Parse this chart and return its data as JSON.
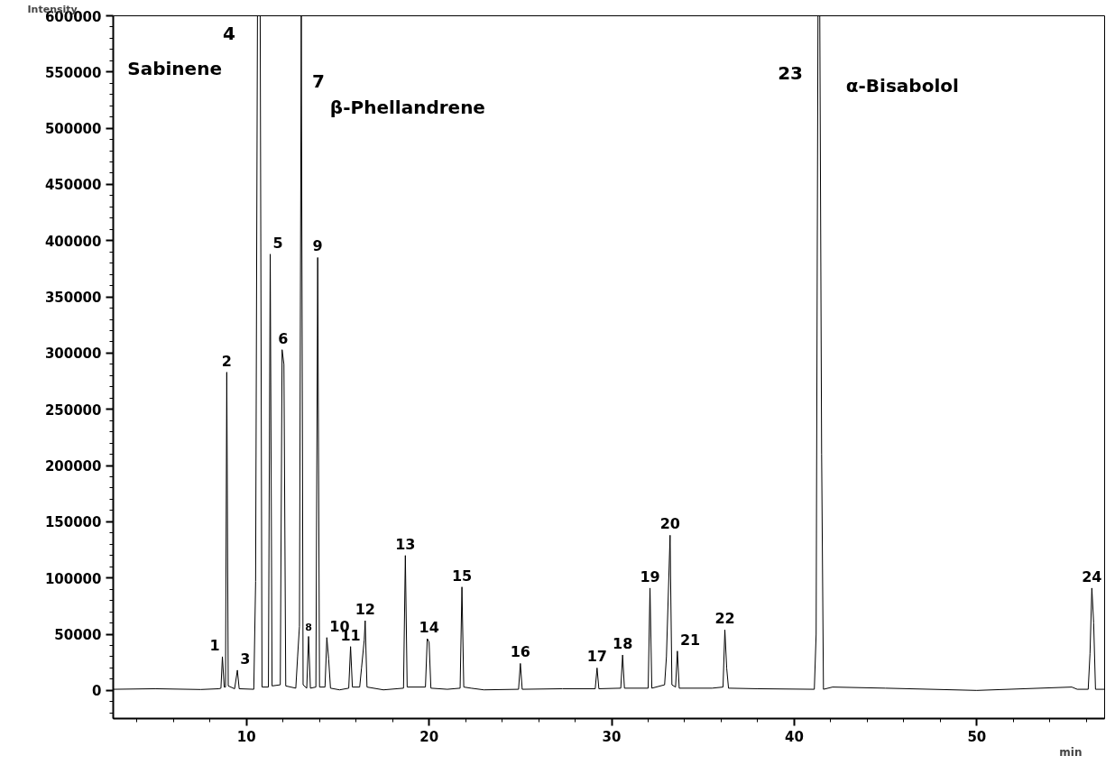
{
  "chart_data": {
    "type": "line",
    "xlabel": "min",
    "ylabel": "Intensity",
    "series": [
      {
        "color": "#000000",
        "x": [
          2.7,
          5,
          7.5,
          8.5,
          8.6,
          8.68,
          8.78,
          8.85,
          8.92,
          9.0,
          9.35,
          9.5,
          9.6,
          10.4,
          10.5,
          10.6,
          10.75,
          10.85,
          11.2,
          11.3,
          11.4,
          11.85,
          11.95,
          12.05,
          12.15,
          12.7,
          12.8,
          12.9,
          13.0,
          13.1,
          13.3,
          13.4,
          13.5,
          13.8,
          13.9,
          14.0,
          14.3,
          14.4,
          14.5,
          14.6,
          15.1,
          15.6,
          15.7,
          15.8,
          16.2,
          16.3,
          16.45,
          16.5,
          16.6,
          17.5,
          18.6,
          18.7,
          18.8,
          19.8,
          19.9,
          20.0,
          20.1,
          21.0,
          21.7,
          21.8,
          21.9,
          22.3,
          23,
          24.9,
          25.0,
          25.1,
          27.3,
          29.1,
          29.2,
          29.3,
          30.5,
          30.6,
          30.7,
          32.0,
          32.1,
          32.2,
          32.9,
          33.0,
          33.2,
          33.3,
          33.5,
          33.6,
          33.7,
          35.5,
          36.1,
          36.2,
          36.3,
          36.4,
          38,
          41.1,
          41.2,
          41.3,
          41.4,
          41.5,
          41.6,
          42.1,
          45,
          50,
          55.2,
          55.5,
          56.1,
          56.2,
          56.3,
          56.4,
          56.5,
          57
        ],
        "values": [
          1000,
          1500,
          800,
          1500,
          2000,
          30000,
          3000,
          3000,
          283000,
          4000,
          1500,
          18000,
          1500,
          1000,
          97000,
          600000,
          600000,
          3000,
          3000,
          388000,
          4000,
          5000,
          303000,
          290000,
          4000,
          2000,
          30000,
          57000,
          600000,
          5000,
          2000,
          48000,
          2000,
          3000,
          385000,
          3000,
          3000,
          47000,
          28000,
          2000,
          500,
          2000,
          39000,
          3000,
          3000,
          20000,
          45000,
          62000,
          3000,
          500,
          2000,
          120000,
          3000,
          3000,
          46000,
          43000,
          2000,
          1000,
          2000,
          92000,
          3000,
          2000,
          500,
          1000,
          24000,
          1000,
          1500,
          1500,
          20000,
          1500,
          2000,
          31500,
          2000,
          2000,
          91000,
          2000,
          5000,
          30000,
          138000,
          5000,
          3000,
          35000,
          2000,
          2000,
          3000,
          54000,
          20000,
          2000,
          1500,
          1000,
          50000,
          600000,
          600000,
          210000,
          1000,
          3000,
          2000,
          0,
          3000,
          1000,
          1000,
          33000,
          91000,
          60000,
          1000,
          1000
        ]
      }
    ],
    "xlim": [
      2.7,
      57
    ],
    "ylim": [
      -25000,
      600000
    ],
    "xticks": [
      10,
      20,
      30,
      40,
      50
    ],
    "yticks": [
      0,
      50000,
      100000,
      150000,
      200000,
      250000,
      300000,
      350000,
      400000,
      450000,
      500000,
      550000,
      600000
    ],
    "grid": false,
    "marker": "none",
    "line_style": "solid",
    "annotations": [
      {
        "text": "1",
        "x": 8.68,
        "y": 30000
      },
      {
        "text": "2",
        "x": 8.92,
        "y": 283000
      },
      {
        "text": "3",
        "x": 9.5,
        "y": 18000
      },
      "4",
      "Sabinene",
      {
        "text": "5",
        "x": 11.3,
        "y": 388000
      },
      {
        "text": "6",
        "x": 12.0,
        "y": 303000
      },
      "7",
      "β-Phellandrene",
      {
        "text": "8",
        "x": 13.4,
        "y": 48000
      },
      {
        "text": "9",
        "x": 13.9,
        "y": 385000
      },
      {
        "text": "10",
        "x": 14.4,
        "y": 47000
      },
      {
        "text": "11",
        "x": 15.7,
        "y": 39000
      },
      {
        "text": "12",
        "x": 16.5,
        "y": 62000
      },
      {
        "text": "13",
        "x": 18.7,
        "y": 120000
      },
      {
        "text": "14",
        "x": 20.0,
        "y": 46000
      },
      {
        "text": "15",
        "x": 21.8,
        "y": 92000
      },
      {
        "text": "16",
        "x": 25.0,
        "y": 24000
      },
      {
        "text": "17",
        "x": 29.2,
        "y": 20000
      },
      {
        "text": "18",
        "x": 30.6,
        "y": 31500
      },
      {
        "text": "19",
        "x": 32.1,
        "y": 91000
      },
      {
        "text": "20",
        "x": 33.2,
        "y": 138000
      },
      {
        "text": "21",
        "x": 33.6,
        "y": 35000
      },
      {
        "text": "22",
        "x": 36.2,
        "y": 54000
      },
      "23",
      "α-Bisabolol",
      {
        "text": "24",
        "x": 56.3,
        "y": 91000
      }
    ]
  }
}
